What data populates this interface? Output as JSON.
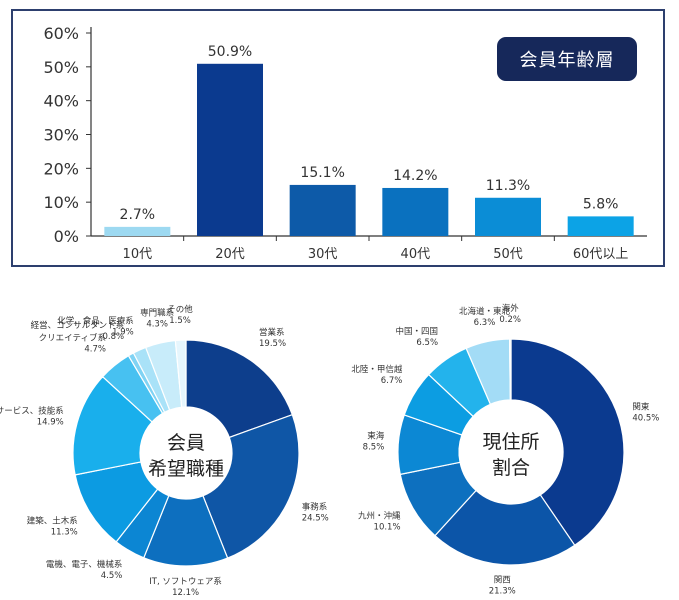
{
  "badge_label": "会員年齢層",
  "chart_data": [
    {
      "type": "bar",
      "categories": [
        "10代",
        "20代",
        "30代",
        "40代",
        "50代",
        "60代以上"
      ],
      "values": [
        2.7,
        50.9,
        15.1,
        14.2,
        11.3,
        5.8
      ],
      "value_labels": [
        "2.7%",
        "50.9%",
        "15.1%",
        "14.2%",
        "11.3%",
        "5.8%"
      ],
      "colors": [
        "#9dd9f1",
        "#0b3a8f",
        "#0d5aa8",
        "#0a71bf",
        "#0b8dd6",
        "#0ca3e6"
      ],
      "ylim": [
        0,
        60
      ],
      "yticks": [
        "0%",
        "10%",
        "20%",
        "30%",
        "40%",
        "50%",
        "60%"
      ],
      "grid": false,
      "legend": "none"
    },
    {
      "type": "pie",
      "variant": "donut",
      "center_label": [
        "会員",
        "希望職種"
      ],
      "labels": [
        "営業系",
        "事務系",
        "IT, ソフトウェア系",
        "電機、電子、機械系",
        "建築、土木系",
        "店舗、サービス、技能系",
        "クリエイティブ系",
        "経営、コンサルタント系",
        "化学、食品、医療系",
        "専門職系",
        "その他"
      ],
      "values": [
        19.5,
        24.5,
        12.1,
        4.5,
        11.3,
        14.9,
        4.7,
        0.8,
        1.9,
        4.3,
        1.5
      ],
      "value_labels": [
        "19.5%",
        "24.5%",
        "12.1%",
        "4.5%",
        "11.3%",
        "14.9%",
        "4.7%",
        "0.8%",
        "1.9%",
        "4.3%",
        "1.5%"
      ],
      "colors": [
        "#0d3e8c",
        "#0f56a6",
        "#0d6fbf",
        "#0c86d3",
        "#0c9be2",
        "#19afec",
        "#47c1f1",
        "#80d3f4",
        "#a9e2f8",
        "#c8ecfa",
        "#e6f6fd"
      ]
    },
    {
      "type": "pie",
      "variant": "donut",
      "center_label": [
        "現住所",
        "割合"
      ],
      "labels": [
        "関東",
        "関西",
        "九州・沖縄",
        "東海",
        "北陸・甲信越",
        "中国・四国",
        "北海道・東北",
        "海外"
      ],
      "values": [
        40.5,
        21.3,
        10.1,
        8.5,
        6.7,
        6.5,
        6.3,
        0.2
      ],
      "value_labels": [
        "40.5%",
        "21.3%",
        "10.1%",
        "8.5%",
        "6.7%",
        "6.5%",
        "6.3%",
        "0.2%"
      ],
      "colors": [
        "#0b3a8f",
        "#0c55a8",
        "#0d70bf",
        "#0c88d4",
        "#0c9de2",
        "#23b3ec",
        "#a3dcf6",
        "#dff3fc"
      ]
    }
  ]
}
